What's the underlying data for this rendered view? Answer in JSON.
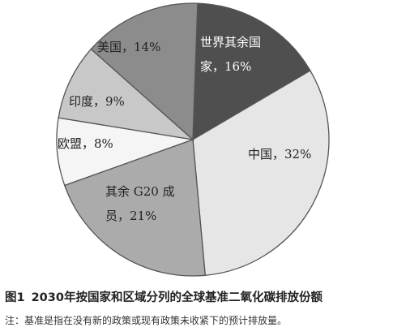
{
  "chart_data": {
    "type": "pie",
    "title": "",
    "slices": [
      {
        "label": "世界其余国家",
        "value": 16,
        "color": "#4f4f4f",
        "label_lines": [
          "世界其余国",
          "家，16%"
        ],
        "label_color": "#ffffff"
      },
      {
        "label": "中国",
        "value": 32,
        "color": "#e6e6e6",
        "label_lines": [
          "中国，32%"
        ],
        "label_color": "#222222"
      },
      {
        "label": "其余G20成员",
        "value": 21,
        "color": "#ababab",
        "label_lines": [
          "其余 G20 成",
          "员，21%"
        ],
        "label_color": "#222222"
      },
      {
        "label": "欧盟",
        "value": 8,
        "color": "#f5f5f5",
        "label_lines": [
          "欧盟，8%"
        ],
        "label_color": "#222222"
      },
      {
        "label": "印度",
        "value": 9,
        "color": "#c8c8c8",
        "label_lines": [
          "印度，9%"
        ],
        "label_color": "#222222"
      },
      {
        "label": "美国",
        "value": 14,
        "color": "#8c8c8c",
        "label_lines": [
          "美国，14%"
        ],
        "label_color": "#222222"
      }
    ],
    "legend": "none",
    "stroke_color": "#555555"
  },
  "caption": {
    "figure_number": "图1",
    "title": "2030年按国家和区域分列的全球基准二氧化碳排放份额",
    "note": "注：基准是指在没有新的政策或现有政策未收紧下的预计排放量。"
  }
}
